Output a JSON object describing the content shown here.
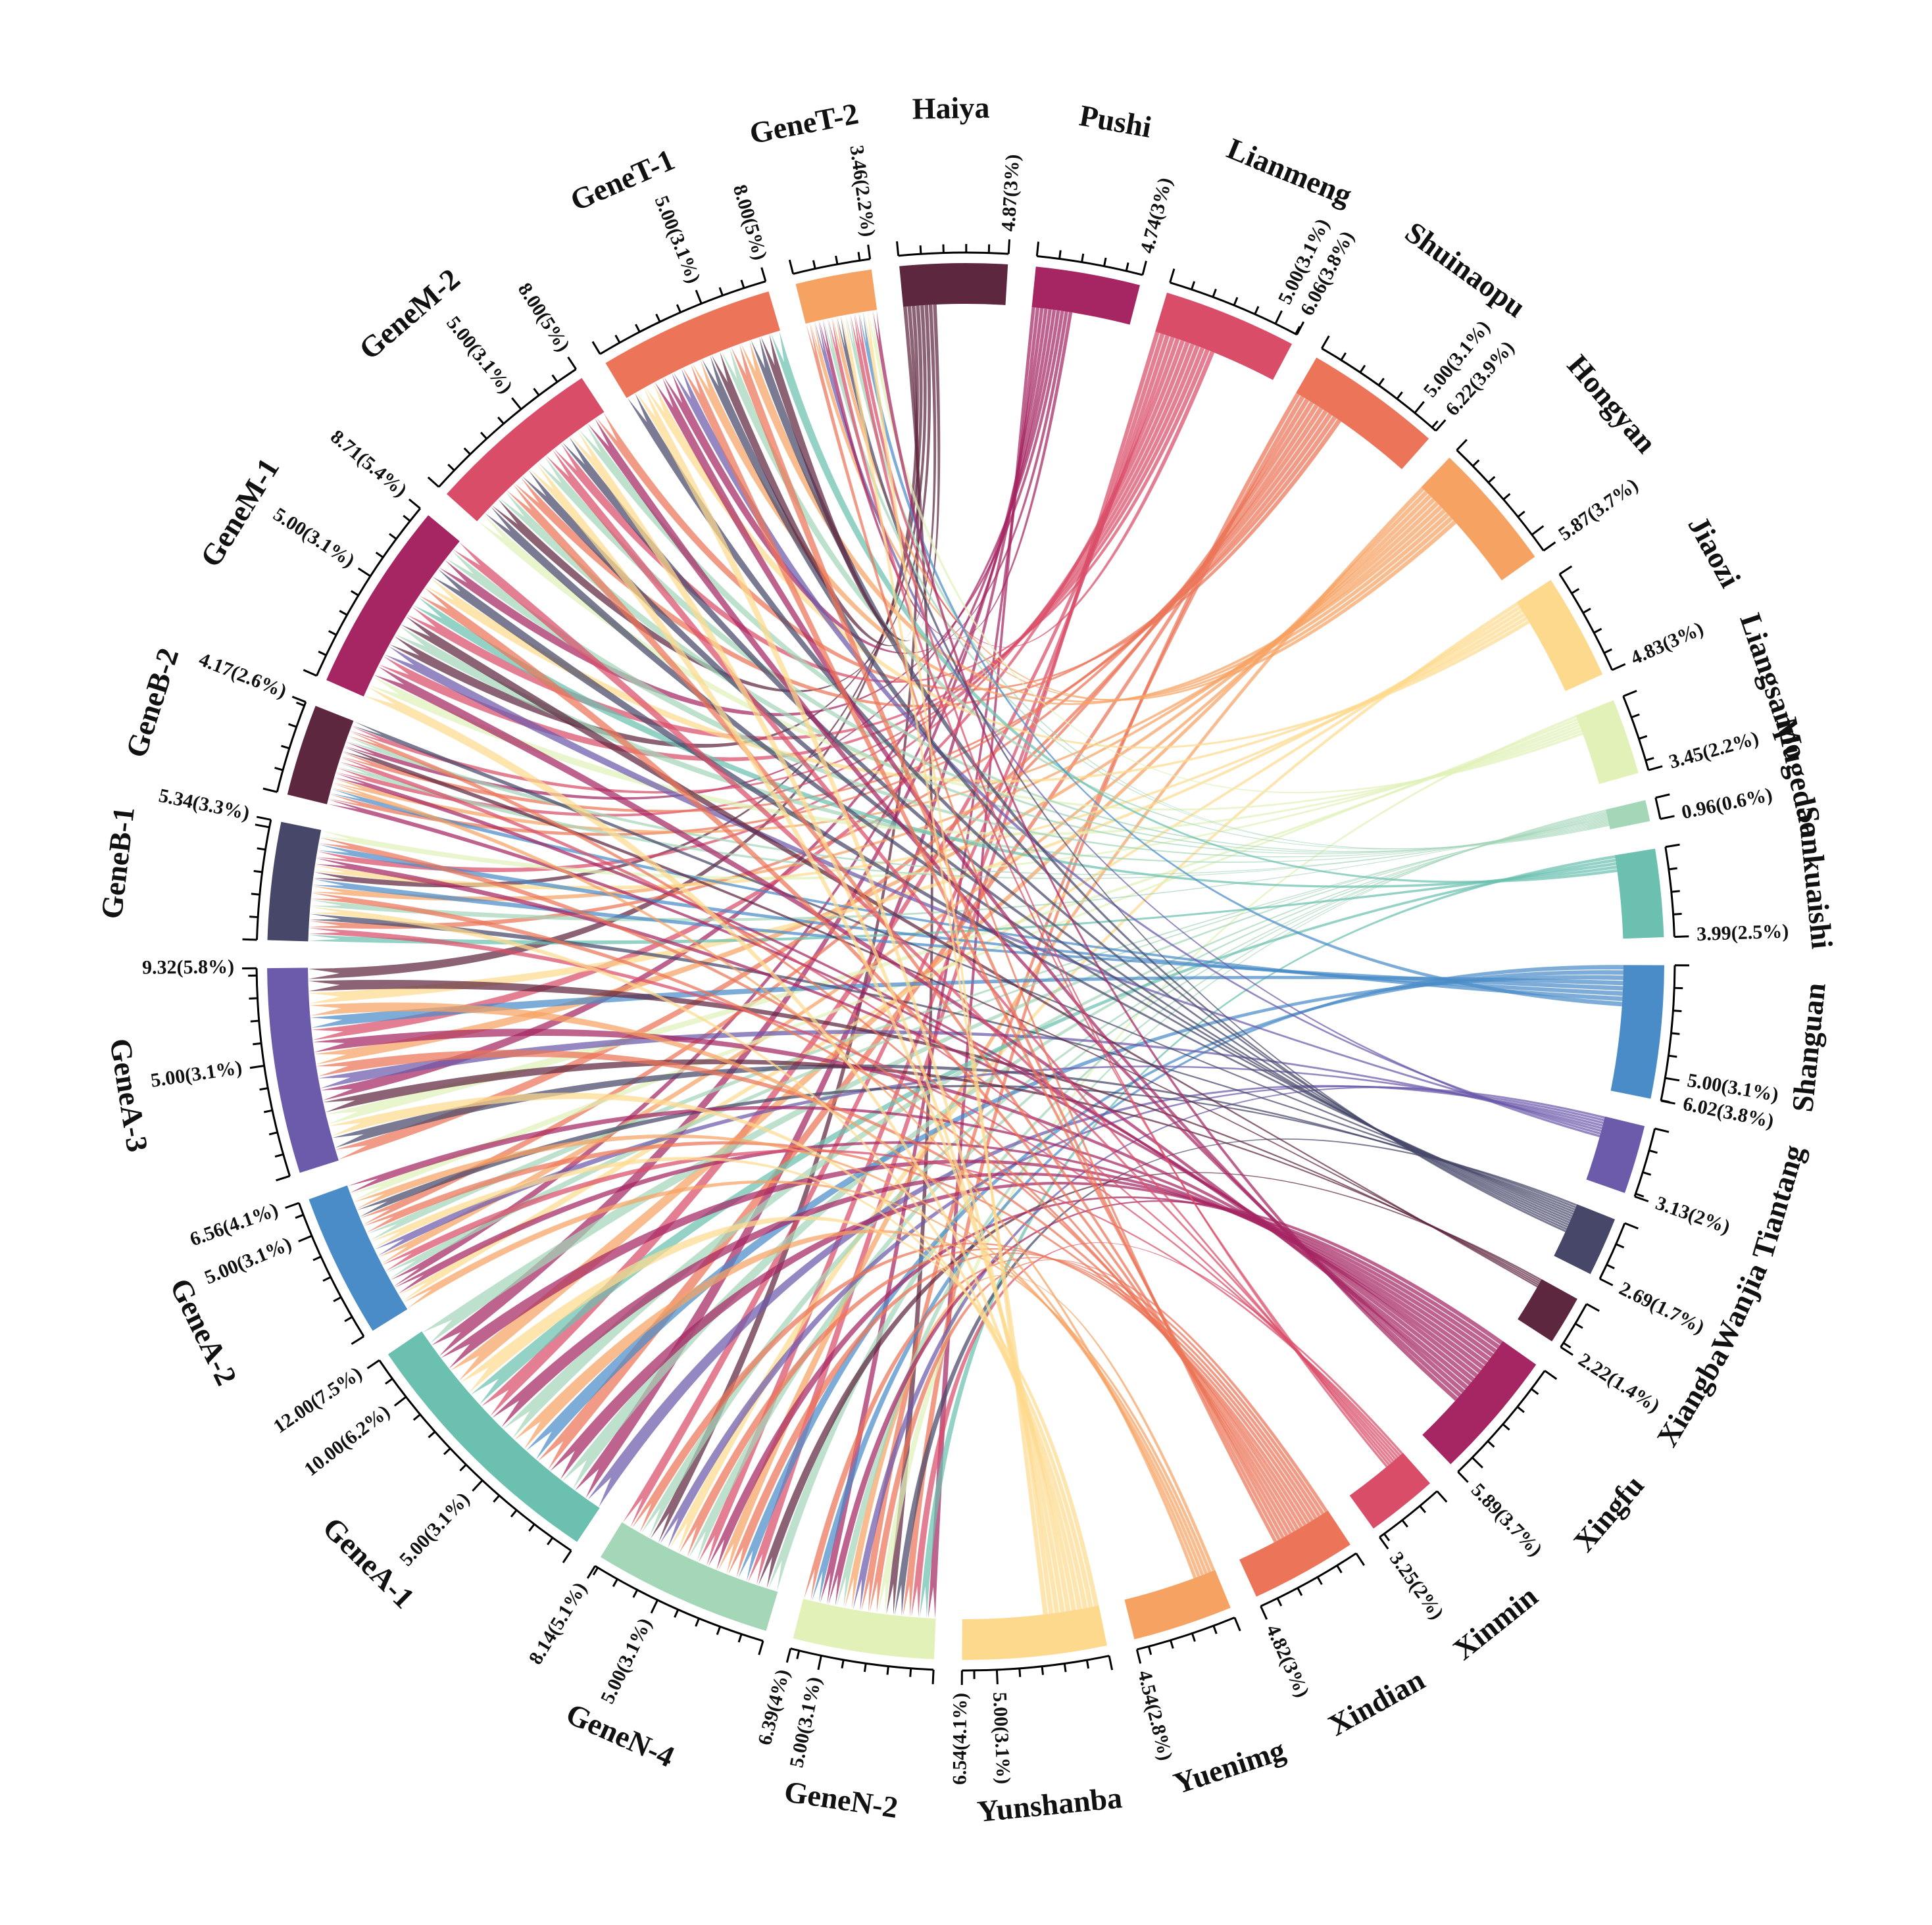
{
  "chart_data": {
    "type": "chord",
    "title": "",
    "segments": [
      {
        "name": "Haiya",
        "value": 4.87,
        "label": "4.87(3%)",
        "color": "#5E2740",
        "group": "right",
        "ticks": []
      },
      {
        "name": "Pushi",
        "value": 4.74,
        "label": "4.74(3%)",
        "color": "#A52663",
        "group": "right",
        "ticks": []
      },
      {
        "name": "Lianmeng",
        "value": 6.06,
        "label": "6.06(3.8%)",
        "color": "#D94D69",
        "group": "right",
        "ticks": [
          {
            "value": 5.0,
            "label": "5.00(3.1%)"
          }
        ]
      },
      {
        "name": "Shuinaopu",
        "value": 6.22,
        "label": "6.22(3.9%)",
        "color": "#EC7458",
        "group": "right",
        "ticks": [
          {
            "value": 5.0,
            "label": "5.00(3.1%)"
          }
        ]
      },
      {
        "name": "Hongyan",
        "value": 5.87,
        "label": "5.87(3.7%)",
        "color": "#F6A262",
        "group": "right",
        "ticks": []
      },
      {
        "name": "Jiaozi",
        "value": 4.83,
        "label": "4.83(3%)",
        "color": "#FDD98E",
        "group": "right",
        "ticks": []
      },
      {
        "name": "Liangsanpo",
        "value": 3.45,
        "label": "3.45(2.2%)",
        "color": "#E1F1B8",
        "group": "right",
        "ticks": []
      },
      {
        "name": "Mugedao",
        "value": 0.96,
        "label": "0.96(0.6%)",
        "color": "#A4D6B8",
        "group": "right",
        "ticks": []
      },
      {
        "name": "Sankuaishi",
        "value": 3.99,
        "label": "3.99(2.5%)",
        "color": "#6BC0B0",
        "group": "right",
        "ticks": []
      },
      {
        "name": "Shanguan",
        "value": 6.02,
        "label": "6.02(3.8%)",
        "color": "#4A8CC8",
        "group": "right",
        "ticks": [
          {
            "value": 5.0,
            "label": "5.00(3.1%)"
          }
        ]
      },
      {
        "name": "Tiantang",
        "value": 3.13,
        "label": "3.13(2%)",
        "color": "#6C5AAA",
        "group": "right",
        "ticks": []
      },
      {
        "name": "Wanjia",
        "value": 2.69,
        "label": "2.69(1.7%)",
        "color": "#474869",
        "group": "right",
        "ticks": []
      },
      {
        "name": "Xiangba",
        "value": 2.22,
        "label": "2.22(1.4%)",
        "color": "#5E2740",
        "group": "right",
        "ticks": []
      },
      {
        "name": "Xingfu",
        "value": 5.89,
        "label": "5.89(3.7%)",
        "color": "#A52663",
        "group": "right",
        "ticks": []
      },
      {
        "name": "Xinmin",
        "value": 3.25,
        "label": "3.25(2%)",
        "color": "#D94D69",
        "group": "right",
        "ticks": []
      },
      {
        "name": "Xindian",
        "value": 4.82,
        "label": "4.82(3%)",
        "color": "#EC7458",
        "group": "right",
        "ticks": []
      },
      {
        "name": "Yuenimg",
        "value": 4.54,
        "label": "4.54(2.8%)",
        "color": "#F6A262",
        "group": "right",
        "ticks": []
      },
      {
        "name": "Yunshanba",
        "value": 6.54,
        "label": "6.54(4.1%)",
        "color": "#FDD98E",
        "group": "right",
        "ticks": [
          {
            "value": 5.0,
            "label": "5.00(3.1%)"
          }
        ]
      },
      {
        "name": "GeneN-2",
        "value": 6.39,
        "label": "6.39(4%)",
        "color": "#E1F1B8",
        "group": "left",
        "ticks": [
          {
            "value": 5.0,
            "label": "5.00(3.1%)"
          }
        ]
      },
      {
        "name": "GeneN-4",
        "value": 8.14,
        "label": "8.14(5.1%)",
        "color": "#A4D6B8",
        "group": "left",
        "ticks": [
          {
            "value": 5.0,
            "label": "5.00(3.1%)"
          }
        ]
      },
      {
        "name": "GeneA-1",
        "value": 12.0,
        "label": "12.00(7.5%)",
        "color": "#6BC0B0",
        "group": "left",
        "ticks": [
          {
            "value": 5.0,
            "label": "5.00(3.1%)"
          },
          {
            "value": 10.0,
            "label": "10.00(6.2%)"
          }
        ]
      },
      {
        "name": "GeneA-2",
        "value": 6.56,
        "label": "6.56(4.1%)",
        "color": "#4A8CC8",
        "group": "left",
        "ticks": [
          {
            "value": 5.0,
            "label": "5.00(3.1%)"
          }
        ]
      },
      {
        "name": "GeneA-3",
        "value": 9.32,
        "label": "9.32(5.8%)",
        "color": "#6C5AAA",
        "group": "left",
        "ticks": [
          {
            "value": 5.0,
            "label": "5.00(3.1%)"
          }
        ]
      },
      {
        "name": "GeneB-1",
        "value": 5.34,
        "label": "5.34(3.3%)",
        "color": "#474869",
        "group": "left",
        "ticks": []
      },
      {
        "name": "GeneB-2",
        "value": 4.17,
        "label": "4.17(2.6%)",
        "color": "#5E2740",
        "group": "left",
        "ticks": []
      },
      {
        "name": "GeneM-1",
        "value": 8.71,
        "label": "8.71(5.4%)",
        "color": "#A52663",
        "group": "left",
        "ticks": [
          {
            "value": 5.0,
            "label": "5.00(3.1%)"
          }
        ]
      },
      {
        "name": "GeneM-2",
        "value": 8.0,
        "label": "8.00(5%)",
        "color": "#D94D69",
        "group": "left",
        "ticks": [
          {
            "value": 5.0,
            "label": "5.00(3.1%)"
          }
        ]
      },
      {
        "name": "GeneT-1",
        "value": 8.0,
        "label": "8.00(5%)",
        "color": "#EC7458",
        "group": "left",
        "ticks": [
          {
            "value": 5.0,
            "label": "5.00(3.1%)"
          }
        ]
      },
      {
        "name": "GeneT-2",
        "value": 3.46,
        "label": "3.46(2.2%)",
        "color": "#F6A262",
        "group": "left",
        "ticks": []
      }
    ]
  }
}
